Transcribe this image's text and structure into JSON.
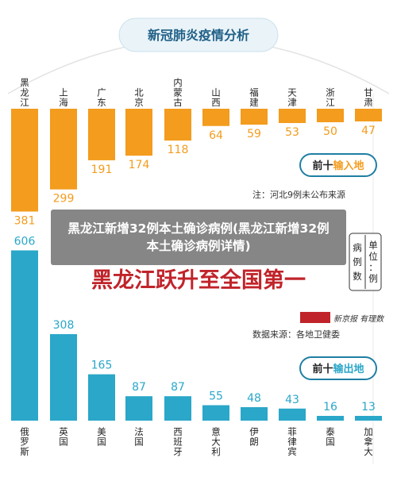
{
  "header_title": "新冠肺炎疫情分析",
  "headline": "黑龙江跃升至全国第一",
  "caption": "黑龙江新增32例本土确诊病例(黑龙江新增32例本土确诊病例详情)",
  "unit_label": [
    "单位：例",
    "病例数"
  ],
  "logo": "新京报 有理数",
  "colors": {
    "domestic": "#F39C1E",
    "foreign": "#2AA7C9",
    "headline": "#C0242A",
    "pill": "#1F7FA3"
  },
  "chart_data": [
    {
      "type": "bar",
      "title": "前十输入地",
      "note": "注：河北9例未公布来源",
      "categories": [
        "黑龙江",
        "上海",
        "广东",
        "北京",
        "内蒙古",
        "山西",
        "福建",
        "天津",
        "浙江",
        "甘肃"
      ],
      "values": [
        381,
        299,
        191,
        174,
        118,
        64,
        59,
        53,
        50,
        47
      ]
    },
    {
      "type": "bar",
      "title": "前十输出地",
      "source": "数据来源：各地卫健委",
      "categories": [
        "俄罗斯",
        "英国",
        "美国",
        "法国",
        "西班牙",
        "意大利",
        "伊朗",
        "菲律宾",
        "泰国",
        "加拿大"
      ],
      "values": [
        606,
        308,
        165,
        87,
        87,
        55,
        48,
        43,
        16,
        13
      ]
    }
  ]
}
